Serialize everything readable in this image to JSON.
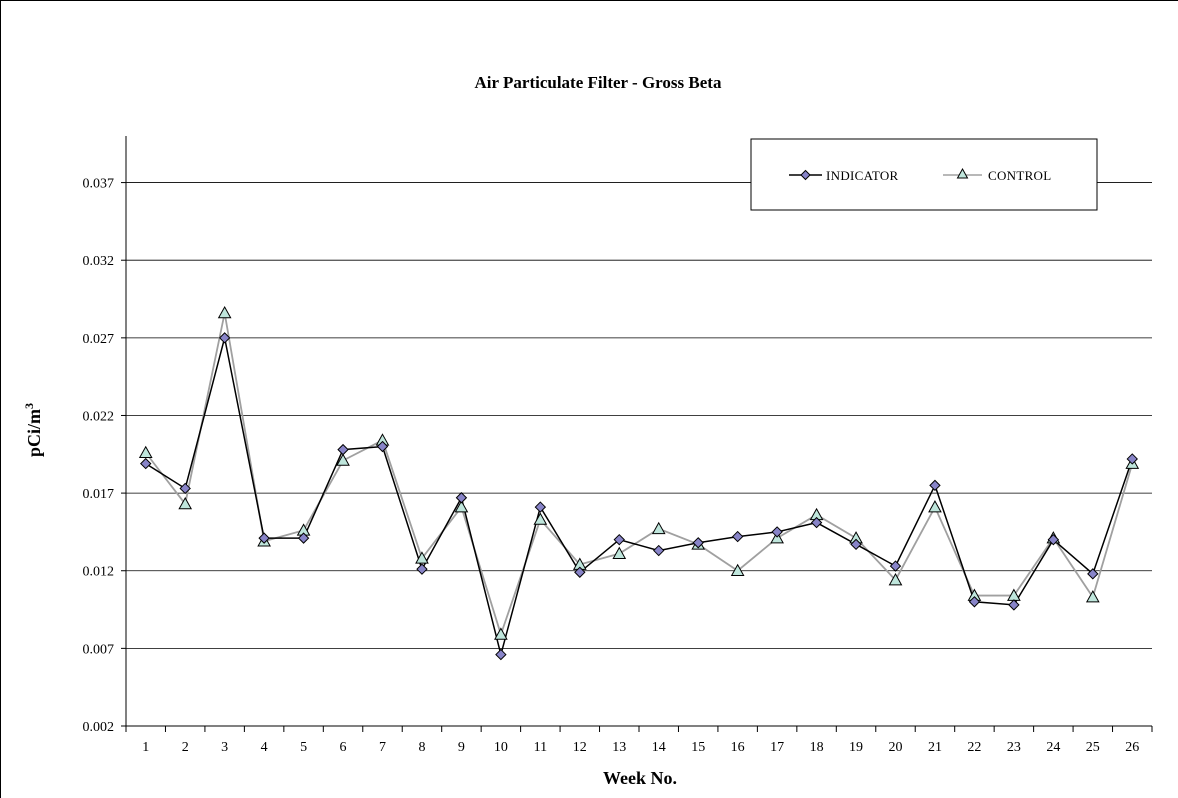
{
  "chart_data": {
    "type": "line",
    "title": "Air Particulate Filter - Gross Beta",
    "xlabel": "Week No.",
    "ylabel": "pCi/m",
    "ylabel_superscript": "3",
    "categories": [
      "1",
      "2",
      "3",
      "4",
      "5",
      "6",
      "7",
      "8",
      "9",
      "10",
      "11",
      "12",
      "13",
      "14",
      "15",
      "16",
      "17",
      "18",
      "19",
      "20",
      "21",
      "22",
      "23",
      "24",
      "25",
      "26"
    ],
    "yticks": [
      "0.002",
      "0.007",
      "0.012",
      "0.017",
      "0.022",
      "0.027",
      "0.032",
      "0.037"
    ],
    "ylim": [
      0.002,
      0.04
    ],
    "grid": true,
    "legend_position": "top-right",
    "series": [
      {
        "name": "INDICATOR",
        "marker": "diamond",
        "line_color": "#000000",
        "marker_color": "#8884c8",
        "values": [
          0.0189,
          0.0173,
          0.027,
          0.0141,
          0.0141,
          0.0198,
          0.02,
          0.0121,
          0.0167,
          0.0066,
          0.0161,
          0.0119,
          0.014,
          0.0133,
          0.0138,
          0.0142,
          0.0145,
          0.0151,
          0.0137,
          0.0123,
          0.0175,
          0.01,
          0.0098,
          0.014,
          0.0118,
          0.0192
        ]
      },
      {
        "name": "CONTROL",
        "marker": "triangle",
        "line_color": "#a0a0a0",
        "marker_color": "#bfe6dc",
        "values": [
          0.0196,
          0.0163,
          0.0286,
          0.0139,
          0.0146,
          0.0191,
          0.0204,
          0.0128,
          0.0161,
          0.0079,
          0.0153,
          0.0124,
          0.0131,
          0.0147,
          0.0137,
          0.012,
          0.0141,
          0.0156,
          0.0141,
          0.0114,
          0.0161,
          0.0104,
          0.0104,
          0.0141,
          0.0103,
          0.0189
        ]
      }
    ]
  }
}
